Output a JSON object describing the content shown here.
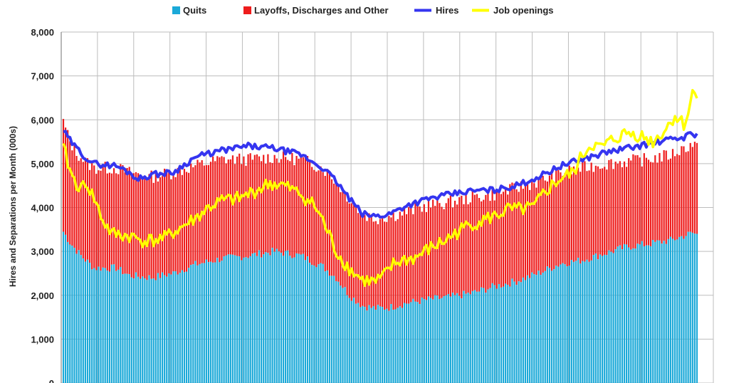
{
  "chart_data": {
    "type": "bar",
    "title": "",
    "xlabel": "",
    "ylabel": "Hires and Separations per Month (000s)",
    "ylim": [
      0,
      8000
    ],
    "y_ticks": [
      "0",
      "1,000",
      "2,000",
      "3,000",
      "4,000",
      "5,000",
      "6,000",
      "7,000",
      "8,000"
    ],
    "grid": true,
    "legend_position": "top",
    "colors": {
      "quits": "#1ba9d8",
      "layoffs": "#ee1c1c",
      "hires": "#3535f0",
      "openings": "#ffff00"
    },
    "series": [
      {
        "key": "quits",
        "name": "Quits"
      },
      {
        "key": "layoffs",
        "name": "Layoffs, Discharges and Other"
      },
      {
        "key": "hires",
        "name": "Hires"
      },
      {
        "key": "openings",
        "name": "Job openings"
      }
    ],
    "anchors": {
      "quits": [
        [
          0,
          3450
        ],
        [
          3,
          3200
        ],
        [
          8,
          2900
        ],
        [
          14,
          2620
        ],
        [
          24,
          2620
        ],
        [
          30,
          2450
        ],
        [
          40,
          2400
        ],
        [
          50,
          2500
        ],
        [
          60,
          2700
        ],
        [
          72,
          2830
        ],
        [
          84,
          2900
        ],
        [
          96,
          3000
        ],
        [
          108,
          2900
        ],
        [
          118,
          2650
        ],
        [
          124,
          2400
        ],
        [
          130,
          2000
        ],
        [
          136,
          1760
        ],
        [
          142,
          1700
        ],
        [
          148,
          1720
        ],
        [
          156,
          1820
        ],
        [
          166,
          1900
        ],
        [
          176,
          1960
        ],
        [
          186,
          2050
        ],
        [
          196,
          2200
        ],
        [
          206,
          2320
        ],
        [
          216,
          2500
        ],
        [
          226,
          2720
        ],
        [
          236,
          2800
        ],
        [
          246,
          2950
        ],
        [
          256,
          3100
        ],
        [
          266,
          3170
        ],
        [
          276,
          3250
        ],
        [
          286,
          3420
        ],
        [
          288,
          3380
        ]
      ],
      "total": [
        [
          0,
          5950
        ],
        [
          3,
          5500
        ],
        [
          6,
          5250
        ],
        [
          10,
          5050
        ],
        [
          14,
          4900
        ],
        [
          24,
          4900
        ],
        [
          30,
          4800
        ],
        [
          40,
          4700
        ],
        [
          50,
          4800
        ],
        [
          60,
          4950
        ],
        [
          72,
          5100
        ],
        [
          84,
          5100
        ],
        [
          96,
          5150
        ],
        [
          108,
          5100
        ],
        [
          118,
          4900
        ],
        [
          124,
          4600
        ],
        [
          130,
          4200
        ],
        [
          136,
          3850
        ],
        [
          142,
          3750
        ],
        [
          148,
          3800
        ],
        [
          156,
          3900
        ],
        [
          166,
          4050
        ],
        [
          176,
          4120
        ],
        [
          186,
          4230
        ],
        [
          196,
          4300
        ],
        [
          206,
          4450
        ],
        [
          216,
          4600
        ],
        [
          226,
          4780
        ],
        [
          236,
          4900
        ],
        [
          246,
          5000
        ],
        [
          256,
          5050
        ],
        [
          266,
          5100
        ],
        [
          276,
          5200
        ],
        [
          286,
          5450
        ],
        [
          288,
          5400
        ]
      ],
      "hires": [
        [
          0,
          5750
        ],
        [
          2,
          5600
        ],
        [
          5,
          5400
        ],
        [
          10,
          5150
        ],
        [
          14,
          5000
        ],
        [
          24,
          4950
        ],
        [
          30,
          4800
        ],
        [
          34,
          4650
        ],
        [
          40,
          4750
        ],
        [
          50,
          4800
        ],
        [
          60,
          5150
        ],
        [
          72,
          5300
        ],
        [
          84,
          5400
        ],
        [
          96,
          5350
        ],
        [
          108,
          5200
        ],
        [
          118,
          4900
        ],
        [
          124,
          4600
        ],
        [
          130,
          4200
        ],
        [
          136,
          3850
        ],
        [
          142,
          3800
        ],
        [
          148,
          3850
        ],
        [
          156,
          4050
        ],
        [
          166,
          4200
        ],
        [
          176,
          4300
        ],
        [
          186,
          4380
        ],
        [
          196,
          4400
        ],
        [
          206,
          4500
        ],
        [
          216,
          4700
        ],
        [
          226,
          4950
        ],
        [
          236,
          5100
        ],
        [
          246,
          5250
        ],
        [
          256,
          5350
        ],
        [
          266,
          5450
        ],
        [
          276,
          5550
        ],
        [
          282,
          5600
        ],
        [
          286,
          5700
        ],
        [
          288,
          5650
        ]
      ],
      "openings": [
        [
          0,
          5350
        ],
        [
          4,
          4700
        ],
        [
          8,
          4400
        ],
        [
          10,
          4600
        ],
        [
          14,
          4200
        ],
        [
          18,
          3700
        ],
        [
          22,
          3400
        ],
        [
          30,
          3350
        ],
        [
          36,
          3250
        ],
        [
          40,
          3250
        ],
        [
          46,
          3300
        ],
        [
          52,
          3500
        ],
        [
          60,
          3750
        ],
        [
          66,
          4000
        ],
        [
          72,
          4150
        ],
        [
          80,
          4200
        ],
        [
          88,
          4400
        ],
        [
          94,
          4550
        ],
        [
          100,
          4500
        ],
        [
          108,
          4300
        ],
        [
          114,
          4050
        ],
        [
          118,
          3700
        ],
        [
          124,
          3000
        ],
        [
          130,
          2600
        ],
        [
          136,
          2350
        ],
        [
          142,
          2300
        ],
        [
          146,
          2450
        ],
        [
          150,
          2700
        ],
        [
          154,
          2800
        ],
        [
          160,
          2850
        ],
        [
          166,
          3050
        ],
        [
          172,
          3200
        ],
        [
          178,
          3400
        ],
        [
          184,
          3600
        ],
        [
          190,
          3700
        ],
        [
          196,
          3800
        ],
        [
          202,
          3950
        ],
        [
          208,
          3950
        ],
        [
          214,
          4000
        ],
        [
          218,
          4300
        ],
        [
          222,
          4500
        ],
        [
          226,
          4650
        ],
        [
          232,
          4800
        ],
        [
          236,
          5200
        ],
        [
          240,
          5450
        ],
        [
          244,
          5350
        ],
        [
          250,
          5550
        ],
        [
          256,
          5700
        ],
        [
          262,
          5650
        ],
        [
          268,
          5500
        ],
        [
          274,
          5800
        ],
        [
          278,
          6100
        ],
        [
          282,
          5900
        ],
        [
          284,
          6150
        ],
        [
          286,
          6600
        ],
        [
          288,
          6650
        ]
      ]
    }
  }
}
